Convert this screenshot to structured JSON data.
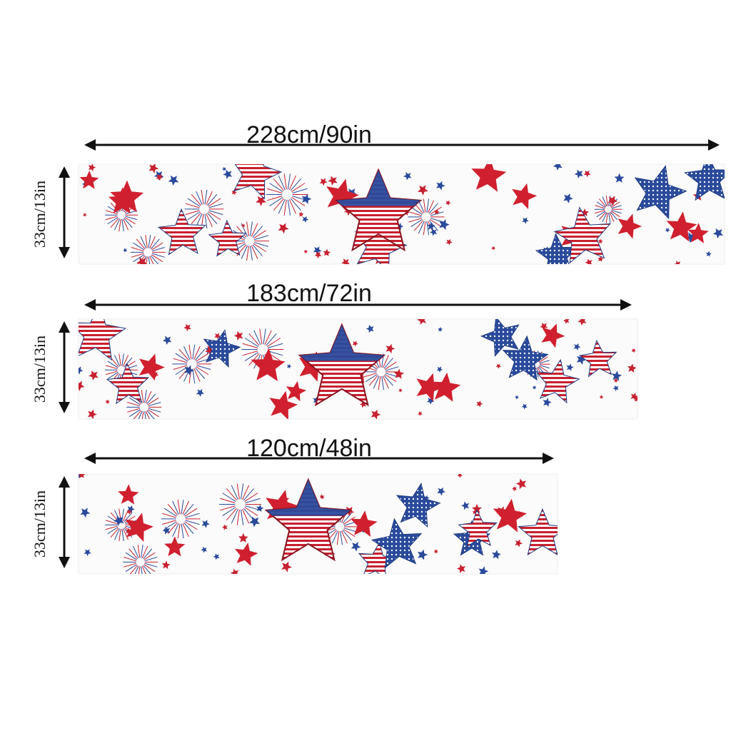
{
  "runners": [
    {
      "length": "228cm/90in",
      "width": "33cm/13in"
    },
    {
      "length": "183cm/72in",
      "width": "33cm/13in"
    },
    {
      "length": "120cm/48in",
      "width": "33cm/13in"
    }
  ]
}
